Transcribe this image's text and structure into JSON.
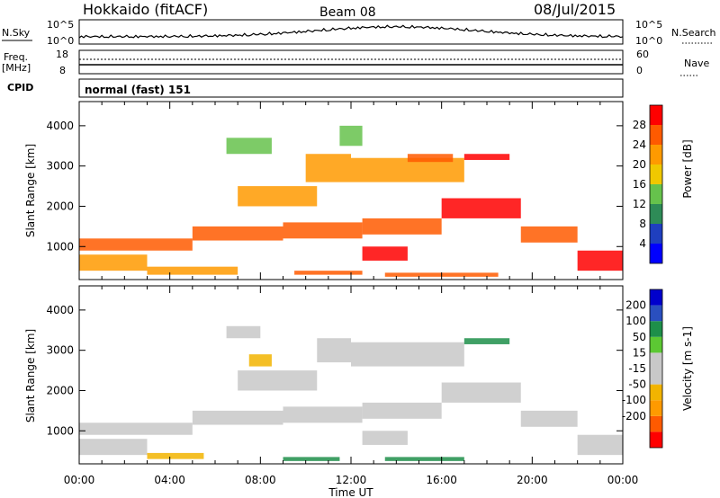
{
  "header": {
    "station": "Hokkaido (fitACF)",
    "beam": "Beam 08",
    "date": "08/Jul/2015"
  },
  "top_panel": {
    "nsky_label": "N.Sky",
    "nsky_ticks": [
      "10^5",
      "10^0"
    ],
    "nsearch_label": "N.Search",
    "nsearch_ticks": [
      "10^5",
      "10^0"
    ],
    "freq_label": "Freq.",
    "freq_unit": "[MHz]",
    "freq_ticks": [
      "18",
      "8"
    ],
    "nave_label": "Nave",
    "nave_ticks": [
      "60",
      "0"
    ],
    "cpid_label": "CPID",
    "cpid_value": "normal (fast) 151"
  },
  "colors": {
    "power": [
      "#0000ff",
      "#1f3fbf",
      "#2e8b57",
      "#66c24c",
      "#f0c800",
      "#ff9a00",
      "#ff5a00",
      "#ff0000"
    ],
    "velocity": [
      "#0000cc",
      "#2a4fbf",
      "#1e8f4a",
      "#5cc833",
      "#c8c8c8",
      "#c8c8c8",
      "#f2b400",
      "#ff9a00",
      "#ff5a00",
      "#ff0000"
    ]
  },
  "chart_data": [
    {
      "type": "heatmap",
      "title": "Power",
      "ylabel": "Slant Range [km]",
      "xlabel": "",
      "ylim": [
        180,
        4600
      ],
      "y_ticks": [
        "1000",
        "2000",
        "3000",
        "4000"
      ],
      "x_ticks": [
        "00:00",
        "04:00",
        "08:00",
        "12:00",
        "16:00",
        "20:00",
        "00:00"
      ],
      "colorbar_label": "Power [dB]",
      "colorbar_ticks": [
        "4",
        "8",
        "12",
        "16",
        "20",
        "24",
        "28"
      ],
      "colorbar_range": [
        0,
        32
      ],
      "bands": [
        {
          "t": [
            0.0,
            5.0
          ],
          "r0": 900,
          "r1": 1200,
          "v": 24
        },
        {
          "t": [
            5.0,
            9.0
          ],
          "r0": 1150,
          "r1": 1500,
          "v": 26
        },
        {
          "t": [
            9.0,
            12.5
          ],
          "r0": 1200,
          "r1": 1600,
          "v": 24
        },
        {
          "t": [
            12.5,
            16.0
          ],
          "r0": 1300,
          "r1": 1700,
          "v": 26
        },
        {
          "t": [
            16.0,
            19.5
          ],
          "r0": 1700,
          "r1": 2200,
          "v": 28
        },
        {
          "t": [
            19.5,
            22.0
          ],
          "r0": 1100,
          "r1": 1500,
          "v": 26
        },
        {
          "t": [
            22.0,
            24.0
          ],
          "r0": 400,
          "r1": 900,
          "v": 28
        },
        {
          "t": [
            7.0,
            10.5
          ],
          "r0": 2000,
          "r1": 2500,
          "v": 22
        },
        {
          "t": [
            12.0,
            17.0
          ],
          "r0": 2600,
          "r1": 3200,
          "v": 22
        },
        {
          "t": [
            12.5,
            14.5
          ],
          "r0": 650,
          "r1": 1000,
          "v": 28
        },
        {
          "t": [
            14.5,
            16.5
          ],
          "r0": 3100,
          "r1": 3300,
          "v": 24
        },
        {
          "t": [
            17.0,
            19.0
          ],
          "r0": 3150,
          "r1": 3300,
          "v": 28
        },
        {
          "t": [
            6.5,
            8.5
          ],
          "r0": 3300,
          "r1": 3700,
          "v": 12
        },
        {
          "t": [
            9.5,
            12.5
          ],
          "r0": 300,
          "r1": 400,
          "v": 26
        },
        {
          "t": [
            13.5,
            18.5
          ],
          "r0": 250,
          "r1": 350,
          "v": 24
        },
        {
          "t": [
            3.0,
            7.0
          ],
          "r0": 300,
          "r1": 500,
          "v": 20
        },
        {
          "t": [
            0.0,
            3.0
          ],
          "r0": 400,
          "r1": 800,
          "v": 22
        },
        {
          "t": [
            11.5,
            12.5
          ],
          "r0": 3500,
          "r1": 4000,
          "v": 12
        },
        {
          "t": [
            10.0,
            12.0
          ],
          "r0": 2600,
          "r1": 3300,
          "v": 20
        }
      ]
    },
    {
      "type": "heatmap",
      "title": "Velocity",
      "ylabel": "Slant Range [km]",
      "xlabel": "Time UT",
      "ylim": [
        180,
        4600
      ],
      "y_ticks": [
        "1000",
        "2000",
        "3000",
        "4000"
      ],
      "x_ticks": [
        "00:00",
        "04:00",
        "08:00",
        "12:00",
        "16:00",
        "20:00",
        "00:00"
      ],
      "colorbar_label": "Velocity [m s-1]",
      "colorbar_ticks": [
        "200",
        "100",
        "50",
        "15",
        "-15",
        "-50",
        "-100",
        "-200"
      ],
      "bands": [
        {
          "t": [
            0.0,
            5.0
          ],
          "r0": 900,
          "r1": 1200,
          "v": 0
        },
        {
          "t": [
            5.0,
            9.0
          ],
          "r0": 1150,
          "r1": 1500,
          "v": 0
        },
        {
          "t": [
            9.0,
            12.5
          ],
          "r0": 1200,
          "r1": 1600,
          "v": 0
        },
        {
          "t": [
            12.5,
            16.0
          ],
          "r0": 1300,
          "r1": 1700,
          "v": 0
        },
        {
          "t": [
            16.0,
            19.5
          ],
          "r0": 1700,
          "r1": 2200,
          "v": 0
        },
        {
          "t": [
            19.5,
            22.0
          ],
          "r0": 1100,
          "r1": 1500,
          "v": 0
        },
        {
          "t": [
            22.0,
            24.0
          ],
          "r0": 400,
          "r1": 900,
          "v": 0
        },
        {
          "t": [
            7.0,
            10.5
          ],
          "r0": 2000,
          "r1": 2500,
          "v": 0
        },
        {
          "t": [
            12.0,
            17.0
          ],
          "r0": 2600,
          "r1": 3200,
          "v": 0
        },
        {
          "t": [
            12.5,
            14.5
          ],
          "r0": 650,
          "r1": 1000,
          "v": 0
        },
        {
          "t": [
            17.0,
            19.0
          ],
          "r0": 3150,
          "r1": 3300,
          "v": 60
        },
        {
          "t": [
            13.5,
            17.0
          ],
          "r0": 250,
          "r1": 350,
          "v": 60
        },
        {
          "t": [
            9.0,
            11.5
          ],
          "r0": 250,
          "r1": 350,
          "v": 60
        },
        {
          "t": [
            3.0,
            5.5
          ],
          "r0": 300,
          "r1": 450,
          "v": -40
        },
        {
          "t": [
            0.0,
            3.0
          ],
          "r0": 400,
          "r1": 800,
          "v": 0
        },
        {
          "t": [
            6.5,
            8.0
          ],
          "r0": 3300,
          "r1": 3600,
          "v": 0
        },
        {
          "t": [
            7.5,
            8.5
          ],
          "r0": 2600,
          "r1": 2900,
          "v": -40
        },
        {
          "t": [
            10.5,
            12.0
          ],
          "r0": 2700,
          "r1": 3300,
          "v": 0
        }
      ]
    }
  ]
}
